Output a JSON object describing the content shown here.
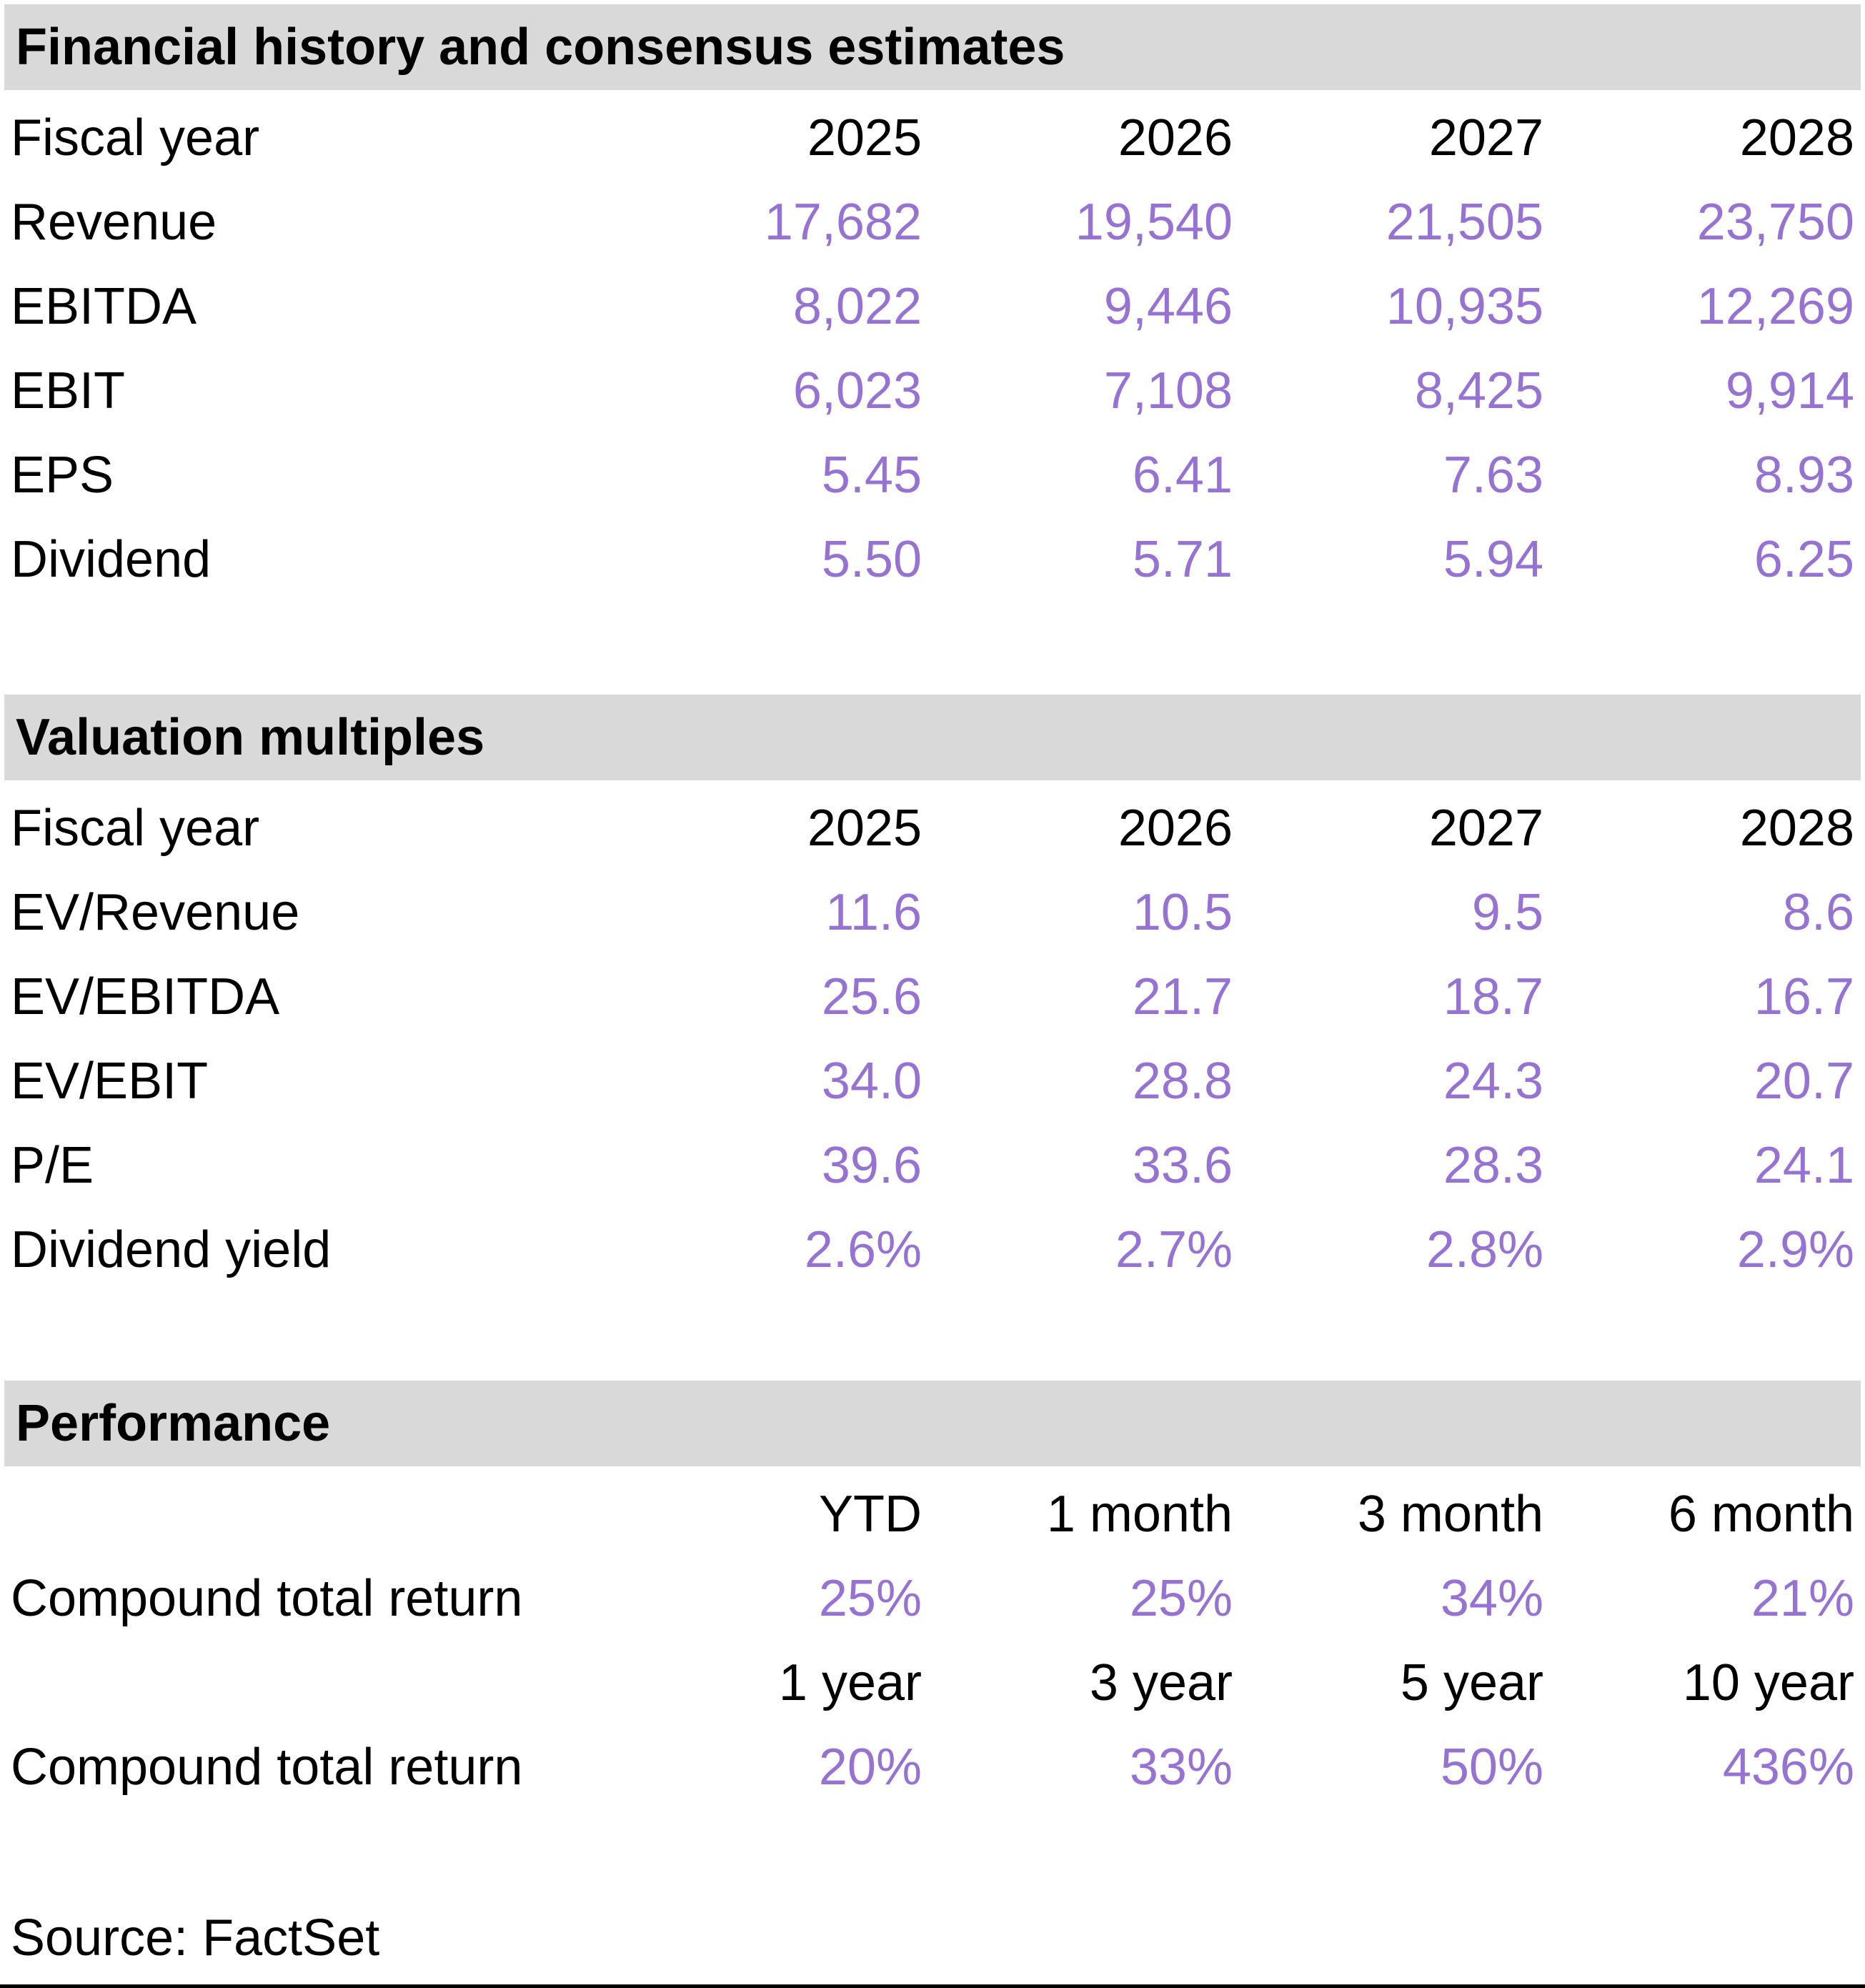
{
  "colors": {
    "accent_purple": "#9673d2",
    "section_header_bg": "#d9d9d9",
    "text": "#000000"
  },
  "sections": [
    {
      "title": "Financial history and consensus estimates",
      "header_label": "Fiscal year",
      "columns": [
        "2025",
        "2026",
        "2027",
        "2028"
      ],
      "rows": [
        {
          "label": "Revenue",
          "values": [
            "17,682",
            "19,540",
            "21,505",
            "23,750"
          ]
        },
        {
          "label": "EBITDA",
          "values": [
            "8,022",
            "9,446",
            "10,935",
            "12,269"
          ]
        },
        {
          "label": "EBIT",
          "values": [
            "6,023",
            "7,108",
            "8,425",
            "9,914"
          ]
        },
        {
          "label": "EPS",
          "values": [
            "5.45",
            "6.41",
            "7.63",
            "8.93"
          ]
        },
        {
          "label": "Dividend",
          "values": [
            "5.50",
            "5.71",
            "5.94",
            "6.25"
          ]
        }
      ]
    },
    {
      "title": "Valuation multiples",
      "header_label": "Fiscal year",
      "columns": [
        "2025",
        "2026",
        "2027",
        "2028"
      ],
      "rows": [
        {
          "label": "EV/Revenue",
          "values": [
            "11.6",
            "10.5",
            "9.5",
            "8.6"
          ]
        },
        {
          "label": "EV/EBITDA",
          "values": [
            "25.6",
            "21.7",
            "18.7",
            "16.7"
          ]
        },
        {
          "label": "EV/EBIT",
          "values": [
            "34.0",
            "28.8",
            "24.3",
            "20.7"
          ]
        },
        {
          "label": "P/E",
          "values": [
            "39.6",
            "33.6",
            "28.3",
            "24.1"
          ]
        },
        {
          "label": "Dividend yield",
          "values": [
            "2.6%",
            "2.7%",
            "2.8%",
            "2.9%"
          ]
        }
      ]
    },
    {
      "title": "Performance",
      "groups": [
        {
          "columns": [
            "YTD",
            "1 month",
            "3 month",
            "6 month"
          ],
          "row": {
            "label": "Compound total return",
            "values": [
              "25%",
              "25%",
              "34%",
              "21%"
            ]
          }
        },
        {
          "columns": [
            "1 year",
            "3 year",
            "5 year",
            "10 year"
          ],
          "row": {
            "label": "Compound total return",
            "values": [
              "20%",
              "33%",
              "50%",
              "436%"
            ]
          }
        }
      ]
    }
  ],
  "source": "Source: FactSet"
}
